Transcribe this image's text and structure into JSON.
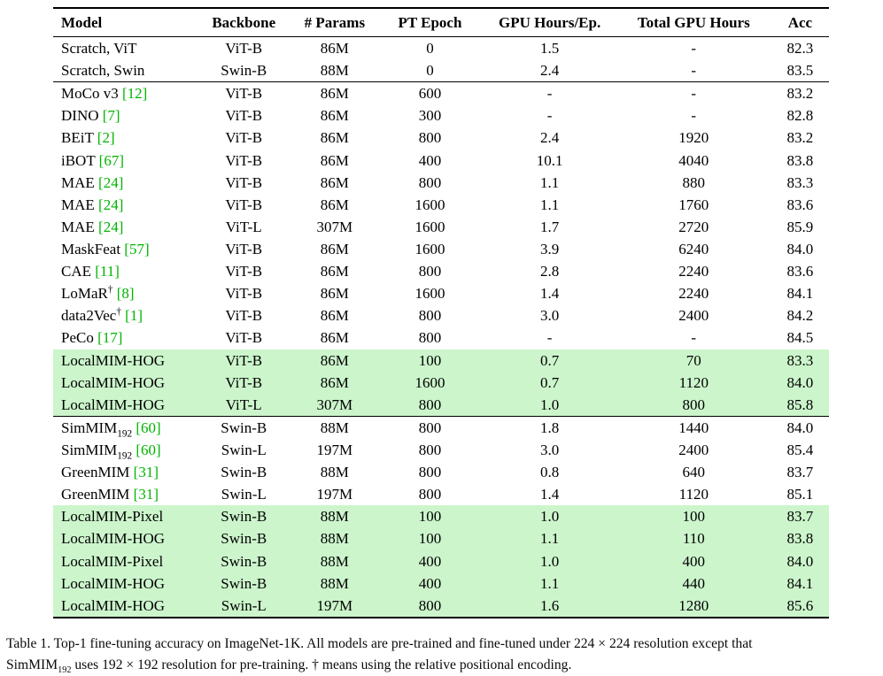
{
  "colors": {
    "citation_green": "#00b400",
    "highlight_green": "#ccf5cc",
    "rule_black": "#000000"
  },
  "table": {
    "columns": [
      "Model",
      "Backbone",
      "# Params",
      "PT Epoch",
      "GPU Hours/Ep.",
      "Total GPU Hours",
      "Acc"
    ],
    "rows": [
      {
        "name": "Scratch, ViT",
        "sub": "",
        "sup": "",
        "cite": "",
        "backbone": "ViT-B",
        "params": "86M",
        "epoch": "0",
        "hours_ep": "1.5",
        "total_hours": "-",
        "acc": "82.3",
        "highlight": false,
        "rule_below": false
      },
      {
        "name": "Scratch, Swin",
        "sub": "",
        "sup": "",
        "cite": "",
        "backbone": "Swin-B",
        "params": "88M",
        "epoch": "0",
        "hours_ep": "2.4",
        "total_hours": "-",
        "acc": "83.5",
        "highlight": false,
        "rule_below": true
      },
      {
        "name": "MoCo v3",
        "sub": "",
        "sup": "",
        "cite": "[12]",
        "backbone": "ViT-B",
        "params": "86M",
        "epoch": "600",
        "hours_ep": "-",
        "total_hours": "-",
        "acc": "83.2",
        "highlight": false,
        "rule_below": false
      },
      {
        "name": "DINO",
        "sub": "",
        "sup": "",
        "cite": "[7]",
        "backbone": "ViT-B",
        "params": "86M",
        "epoch": "300",
        "hours_ep": "-",
        "total_hours": "-",
        "acc": "82.8",
        "highlight": false,
        "rule_below": false
      },
      {
        "name": "BEiT",
        "sub": "",
        "sup": "",
        "cite": "[2]",
        "backbone": "ViT-B",
        "params": "86M",
        "epoch": "800",
        "hours_ep": "2.4",
        "total_hours": "1920",
        "acc": "83.2",
        "highlight": false,
        "rule_below": false
      },
      {
        "name": "iBOT",
        "sub": "",
        "sup": "",
        "cite": "[67]",
        "backbone": "ViT-B",
        "params": "86M",
        "epoch": "400",
        "hours_ep": "10.1",
        "total_hours": "4040",
        "acc": "83.8",
        "highlight": false,
        "rule_below": false
      },
      {
        "name": "MAE",
        "sub": "",
        "sup": "",
        "cite": "[24]",
        "backbone": "ViT-B",
        "params": "86M",
        "epoch": "800",
        "hours_ep": "1.1",
        "total_hours": "880",
        "acc": "83.3",
        "highlight": false,
        "rule_below": false
      },
      {
        "name": "MAE",
        "sub": "",
        "sup": "",
        "cite": "[24]",
        "backbone": "ViT-B",
        "params": "86M",
        "epoch": "1600",
        "hours_ep": "1.1",
        "total_hours": "1760",
        "acc": "83.6",
        "highlight": false,
        "rule_below": false
      },
      {
        "name": "MAE",
        "sub": "",
        "sup": "",
        "cite": "[24]",
        "backbone": "ViT-L",
        "params": "307M",
        "epoch": "1600",
        "hours_ep": "1.7",
        "total_hours": "2720",
        "acc": "85.9",
        "highlight": false,
        "rule_below": false
      },
      {
        "name": "MaskFeat",
        "sub": "",
        "sup": "",
        "cite": "[57]",
        "backbone": "ViT-B",
        "params": "86M",
        "epoch": "1600",
        "hours_ep": "3.9",
        "total_hours": "6240",
        "acc": "84.0",
        "highlight": false,
        "rule_below": false
      },
      {
        "name": "CAE",
        "sub": "",
        "sup": "",
        "cite": "[11]",
        "backbone": "ViT-B",
        "params": "86M",
        "epoch": "800",
        "hours_ep": "2.8",
        "total_hours": "2240",
        "acc": "83.6",
        "highlight": false,
        "rule_below": false
      },
      {
        "name": "LoMaR",
        "sub": "",
        "sup": "†",
        "cite": "[8]",
        "backbone": "ViT-B",
        "params": "86M",
        "epoch": "1600",
        "hours_ep": "1.4",
        "total_hours": "2240",
        "acc": "84.1",
        "highlight": false,
        "rule_below": false
      },
      {
        "name": "data2Vec",
        "sub": "",
        "sup": "†",
        "cite": "[1]",
        "backbone": "ViT-B",
        "params": "86M",
        "epoch": "800",
        "hours_ep": "3.0",
        "total_hours": "2400",
        "acc": "84.2",
        "highlight": false,
        "rule_below": false
      },
      {
        "name": "PeCo",
        "sub": "",
        "sup": "",
        "cite": "[17]",
        "backbone": "ViT-B",
        "params": "86M",
        "epoch": "800",
        "hours_ep": "-",
        "total_hours": "-",
        "acc": "84.5",
        "highlight": false,
        "rule_below": false
      },
      {
        "name": "LocalMIM-HOG",
        "sub": "",
        "sup": "",
        "cite": "",
        "backbone": "ViT-B",
        "params": "86M",
        "epoch": "100",
        "hours_ep": "0.7",
        "total_hours": "70",
        "acc": "83.3",
        "highlight": true,
        "rule_below": false
      },
      {
        "name": "LocalMIM-HOG",
        "sub": "",
        "sup": "",
        "cite": "",
        "backbone": "ViT-B",
        "params": "86M",
        "epoch": "1600",
        "hours_ep": "0.7",
        "total_hours": "1120",
        "acc": "84.0",
        "highlight": true,
        "rule_below": false
      },
      {
        "name": "LocalMIM-HOG",
        "sub": "",
        "sup": "",
        "cite": "",
        "backbone": "ViT-L",
        "params": "307M",
        "epoch": "800",
        "hours_ep": "1.0",
        "total_hours": "800",
        "acc": "85.8",
        "highlight": true,
        "rule_below": true
      },
      {
        "name": "SimMIM",
        "sub": "192",
        "sup": "",
        "cite": "[60]",
        "backbone": "Swin-B",
        "params": "88M",
        "epoch": "800",
        "hours_ep": "1.8",
        "total_hours": "1440",
        "acc": "84.0",
        "highlight": false,
        "rule_below": false
      },
      {
        "name": "SimMIM",
        "sub": "192",
        "sup": "",
        "cite": "[60]",
        "backbone": "Swin-L",
        "params": "197M",
        "epoch": "800",
        "hours_ep": "3.0",
        "total_hours": "2400",
        "acc": "85.4",
        "highlight": false,
        "rule_below": false
      },
      {
        "name": "GreenMIM",
        "sub": "",
        "sup": "",
        "cite": "[31]",
        "backbone": "Swin-B",
        "params": "88M",
        "epoch": "800",
        "hours_ep": "0.8",
        "total_hours": "640",
        "acc": "83.7",
        "highlight": false,
        "rule_below": false
      },
      {
        "name": "GreenMIM",
        "sub": "",
        "sup": "",
        "cite": "[31]",
        "backbone": "Swin-L",
        "params": "197M",
        "epoch": "800",
        "hours_ep": "1.4",
        "total_hours": "1120",
        "acc": "85.1",
        "highlight": false,
        "rule_below": false
      },
      {
        "name": "LocalMIM-Pixel",
        "sub": "",
        "sup": "",
        "cite": "",
        "backbone": "Swin-B",
        "params": "88M",
        "epoch": "100",
        "hours_ep": "1.0",
        "total_hours": "100",
        "acc": "83.7",
        "highlight": true,
        "rule_below": false
      },
      {
        "name": "LocalMIM-HOG",
        "sub": "",
        "sup": "",
        "cite": "",
        "backbone": "Swin-B",
        "params": "88M",
        "epoch": "100",
        "hours_ep": "1.1",
        "total_hours": "110",
        "acc": "83.8",
        "highlight": true,
        "rule_below": false
      },
      {
        "name": "LocalMIM-Pixel",
        "sub": "",
        "sup": "",
        "cite": "",
        "backbone": "Swin-B",
        "params": "88M",
        "epoch": "400",
        "hours_ep": "1.0",
        "total_hours": "400",
        "acc": "84.0",
        "highlight": true,
        "rule_below": false
      },
      {
        "name": "LocalMIM-HOG",
        "sub": "",
        "sup": "",
        "cite": "",
        "backbone": "Swin-B",
        "params": "88M",
        "epoch": "400",
        "hours_ep": "1.1",
        "total_hours": "440",
        "acc": "84.1",
        "highlight": true,
        "rule_below": false
      },
      {
        "name": "LocalMIM-HOG",
        "sub": "",
        "sup": "",
        "cite": "",
        "backbone": "Swin-L",
        "params": "197M",
        "epoch": "800",
        "hours_ep": "1.6",
        "total_hours": "1280",
        "acc": "85.6",
        "highlight": true,
        "rule_below": false
      }
    ]
  },
  "caption": {
    "line1": "Table 1. Top-1 fine-tuning accuracy on ImageNet-1K. All models are pre-trained and fine-tuned under 224 × 224 resolution except that",
    "line2_model": "SimMIM",
    "line2_model_sub": "192",
    "line2_rest": " uses 192 × 192 resolution for pre-training. † means using the relative positional encoding."
  }
}
